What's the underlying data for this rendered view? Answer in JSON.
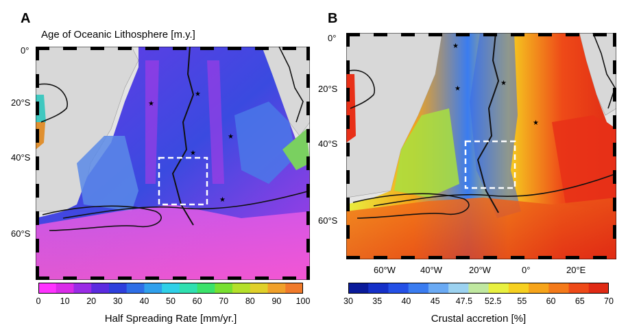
{
  "panel_a": {
    "letter": "A",
    "title": "Age of Oceanic Lithosphere [m.y.]",
    "lat_labels": [
      "0°",
      "20°S",
      "40°S",
      "60°S"
    ],
    "colorbar": {
      "ticks": [
        "0",
        "10",
        "20",
        "30",
        "40",
        "50",
        "60",
        "70",
        "80",
        "90",
        "100"
      ],
      "label": "Half Spreading Rate [mm/yr.]",
      "colors": [
        "#ff33ff",
        "#d92be8",
        "#9a2be6",
        "#5b2be0",
        "#2e3fdc",
        "#2e6ee6",
        "#2fa0ec",
        "#2fd0e8",
        "#2fe0b0",
        "#3be26a",
        "#78e030",
        "#b4e02a",
        "#e0d02a",
        "#f0a02a",
        "#f07a2a"
      ]
    }
  },
  "panel_b": {
    "letter": "B",
    "lat_labels": [
      "0°",
      "20°S",
      "40°S",
      "60°S"
    ],
    "lon_labels": [
      "60°W",
      "40°W",
      "20°W",
      "0°",
      "20°E"
    ],
    "colorbar": {
      "ticks": [
        "30",
        "35",
        "40",
        "45",
        "47.5",
        "52.5",
        "55",
        "60",
        "65",
        "70"
      ],
      "label": "Crustal accretion [%]",
      "colors": [
        "#0a1a9a",
        "#1530c8",
        "#2450e6",
        "#3a7cf0",
        "#6aaaf4",
        "#9cd2f0",
        "#c0e8a0",
        "#e8f040",
        "#f6d020",
        "#f6a41a",
        "#f47a1a",
        "#ee4a18",
        "#e02a14"
      ]
    }
  }
}
